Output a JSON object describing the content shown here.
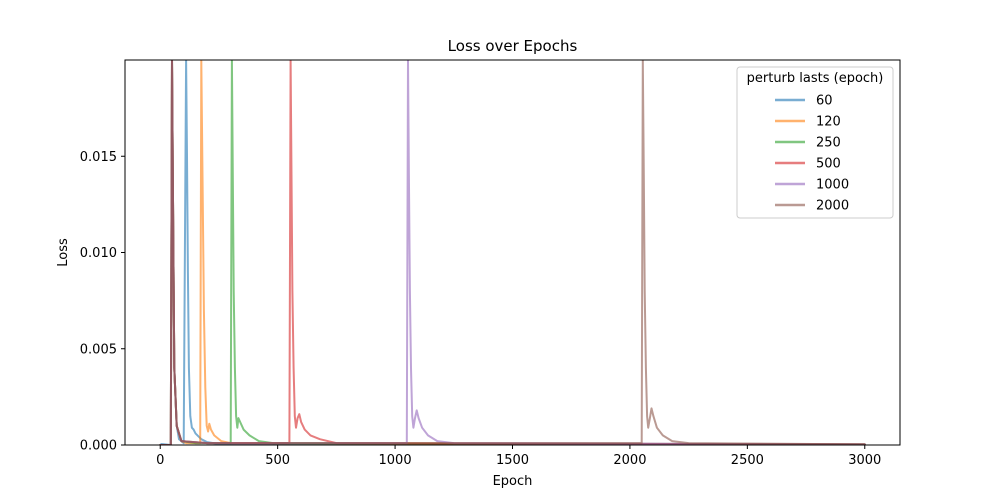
{
  "chart_data": {
    "type": "line",
    "title": "Loss over Epochs",
    "xlabel": "Epoch",
    "ylabel": "Loss",
    "xlim": [
      -150,
      3150
    ],
    "ylim": [
      0,
      0.02
    ],
    "xticks": [
      0,
      500,
      1000,
      1500,
      2000,
      2500,
      3000
    ],
    "xtick_labels": [
      "0",
      "500",
      "1000",
      "1500",
      "2000",
      "2500",
      "3000"
    ],
    "yticks": [
      0,
      0.005,
      0.01,
      0.015
    ],
    "ytick_labels": [
      "0.000",
      "0.005",
      "0.010",
      "0.015"
    ],
    "grid": false,
    "legend": {
      "title": "perturb lasts (epoch)",
      "placement": "top-right"
    },
    "series": [
      {
        "name": "60",
        "color": "#1f77b4",
        "points": [
          [
            0,
            0.0
          ],
          [
            5,
            5e-05
          ],
          [
            45,
            0.0
          ],
          [
            50,
            0.02
          ],
          [
            55,
            0.012
          ],
          [
            60,
            0.004
          ],
          [
            70,
            0.001
          ],
          [
            80,
            0.0003
          ],
          [
            100,
            0.0001
          ],
          [
            110,
            0.02
          ],
          [
            114,
            0.015
          ],
          [
            118,
            0.009
          ],
          [
            122,
            0.004
          ],
          [
            128,
            0.0015
          ],
          [
            135,
            0.0009
          ],
          [
            142,
            0.0008
          ],
          [
            150,
            0.0006
          ],
          [
            175,
            0.0003
          ],
          [
            200,
            0.00015
          ],
          [
            250,
            5e-05
          ],
          [
            3000,
            3e-05
          ]
        ]
      },
      {
        "name": "120",
        "color": "#ff7f0e",
        "points": [
          [
            0,
            0.0
          ],
          [
            45,
            0.0
          ],
          [
            50,
            0.02
          ],
          [
            55,
            0.012
          ],
          [
            60,
            0.004
          ],
          [
            70,
            0.001
          ],
          [
            90,
            0.0002
          ],
          [
            110,
            0.0001
          ],
          [
            170,
            0.0001
          ],
          [
            175,
            0.02
          ],
          [
            180,
            0.014
          ],
          [
            186,
            0.007
          ],
          [
            192,
            0.003
          ],
          [
            198,
            0.001
          ],
          [
            204,
            0.0007
          ],
          [
            209,
            0.0011
          ],
          [
            216,
            0.0008
          ],
          [
            230,
            0.0005
          ],
          [
            260,
            0.0002
          ],
          [
            300,
            0.0001
          ],
          [
            3000,
            3e-05
          ]
        ]
      },
      {
        "name": "250",
        "color": "#2ca02c",
        "points": [
          [
            0,
            0.0
          ],
          [
            45,
            0.0
          ],
          [
            50,
            0.02
          ],
          [
            55,
            0.012
          ],
          [
            60,
            0.004
          ],
          [
            70,
            0.001
          ],
          [
            90,
            0.0002
          ],
          [
            150,
            0.0001
          ],
          [
            300,
            0.0001
          ],
          [
            305,
            0.02
          ],
          [
            309,
            0.014
          ],
          [
            313,
            0.008
          ],
          [
            318,
            0.004
          ],
          [
            323,
            0.0015
          ],
          [
            328,
            0.0009
          ],
          [
            333,
            0.0014
          ],
          [
            340,
            0.0012
          ],
          [
            355,
            0.0008
          ],
          [
            380,
            0.0005
          ],
          [
            420,
            0.0002
          ],
          [
            480,
            0.0001
          ],
          [
            3000,
            3e-05
          ]
        ]
      },
      {
        "name": "500",
        "color": "#d62728",
        "points": [
          [
            0,
            0.0
          ],
          [
            45,
            0.0
          ],
          [
            50,
            0.02
          ],
          [
            55,
            0.012
          ],
          [
            60,
            0.004
          ],
          [
            70,
            0.001
          ],
          [
            90,
            0.0002
          ],
          [
            200,
            0.0001
          ],
          [
            550,
            0.0001
          ],
          [
            555,
            0.02
          ],
          [
            559,
            0.014
          ],
          [
            563,
            0.008
          ],
          [
            568,
            0.004
          ],
          [
            573,
            0.0015
          ],
          [
            578,
            0.0009
          ],
          [
            585,
            0.0014
          ],
          [
            592,
            0.0016
          ],
          [
            600,
            0.0012
          ],
          [
            615,
            0.0008
          ],
          [
            640,
            0.0005
          ],
          [
            680,
            0.0003
          ],
          [
            750,
            0.0001
          ],
          [
            3000,
            3e-05
          ]
        ]
      },
      {
        "name": "1000",
        "color": "#9467bd",
        "points": [
          [
            0,
            0.0
          ],
          [
            45,
            0.0
          ],
          [
            50,
            0.02
          ],
          [
            55,
            0.012
          ],
          [
            60,
            0.004
          ],
          [
            70,
            0.001
          ],
          [
            90,
            0.0002
          ],
          [
            200,
            0.0001
          ],
          [
            1050,
            0.0001
          ],
          [
            1055,
            0.02
          ],
          [
            1059,
            0.014
          ],
          [
            1063,
            0.008
          ],
          [
            1068,
            0.004
          ],
          [
            1073,
            0.0015
          ],
          [
            1078,
            0.0009
          ],
          [
            1085,
            0.0014
          ],
          [
            1092,
            0.0018
          ],
          [
            1100,
            0.0014
          ],
          [
            1115,
            0.0009
          ],
          [
            1140,
            0.0005
          ],
          [
            1180,
            0.0002
          ],
          [
            1250,
            0.0001
          ],
          [
            3000,
            3e-05
          ]
        ]
      },
      {
        "name": "2000",
        "color": "#8c564b",
        "points": [
          [
            0,
            0.0
          ],
          [
            45,
            0.0
          ],
          [
            50,
            0.02
          ],
          [
            55,
            0.012
          ],
          [
            60,
            0.004
          ],
          [
            70,
            0.001
          ],
          [
            90,
            0.0002
          ],
          [
            200,
            0.0001
          ],
          [
            2050,
            0.0001
          ],
          [
            2055,
            0.02
          ],
          [
            2059,
            0.014
          ],
          [
            2063,
            0.008
          ],
          [
            2068,
            0.004
          ],
          [
            2073,
            0.0015
          ],
          [
            2078,
            0.0009
          ],
          [
            2085,
            0.0014
          ],
          [
            2092,
            0.0019
          ],
          [
            2100,
            0.0015
          ],
          [
            2115,
            0.0009
          ],
          [
            2140,
            0.0005
          ],
          [
            2180,
            0.0002
          ],
          [
            2250,
            0.0001
          ],
          [
            3000,
            3e-05
          ]
        ]
      }
    ]
  }
}
